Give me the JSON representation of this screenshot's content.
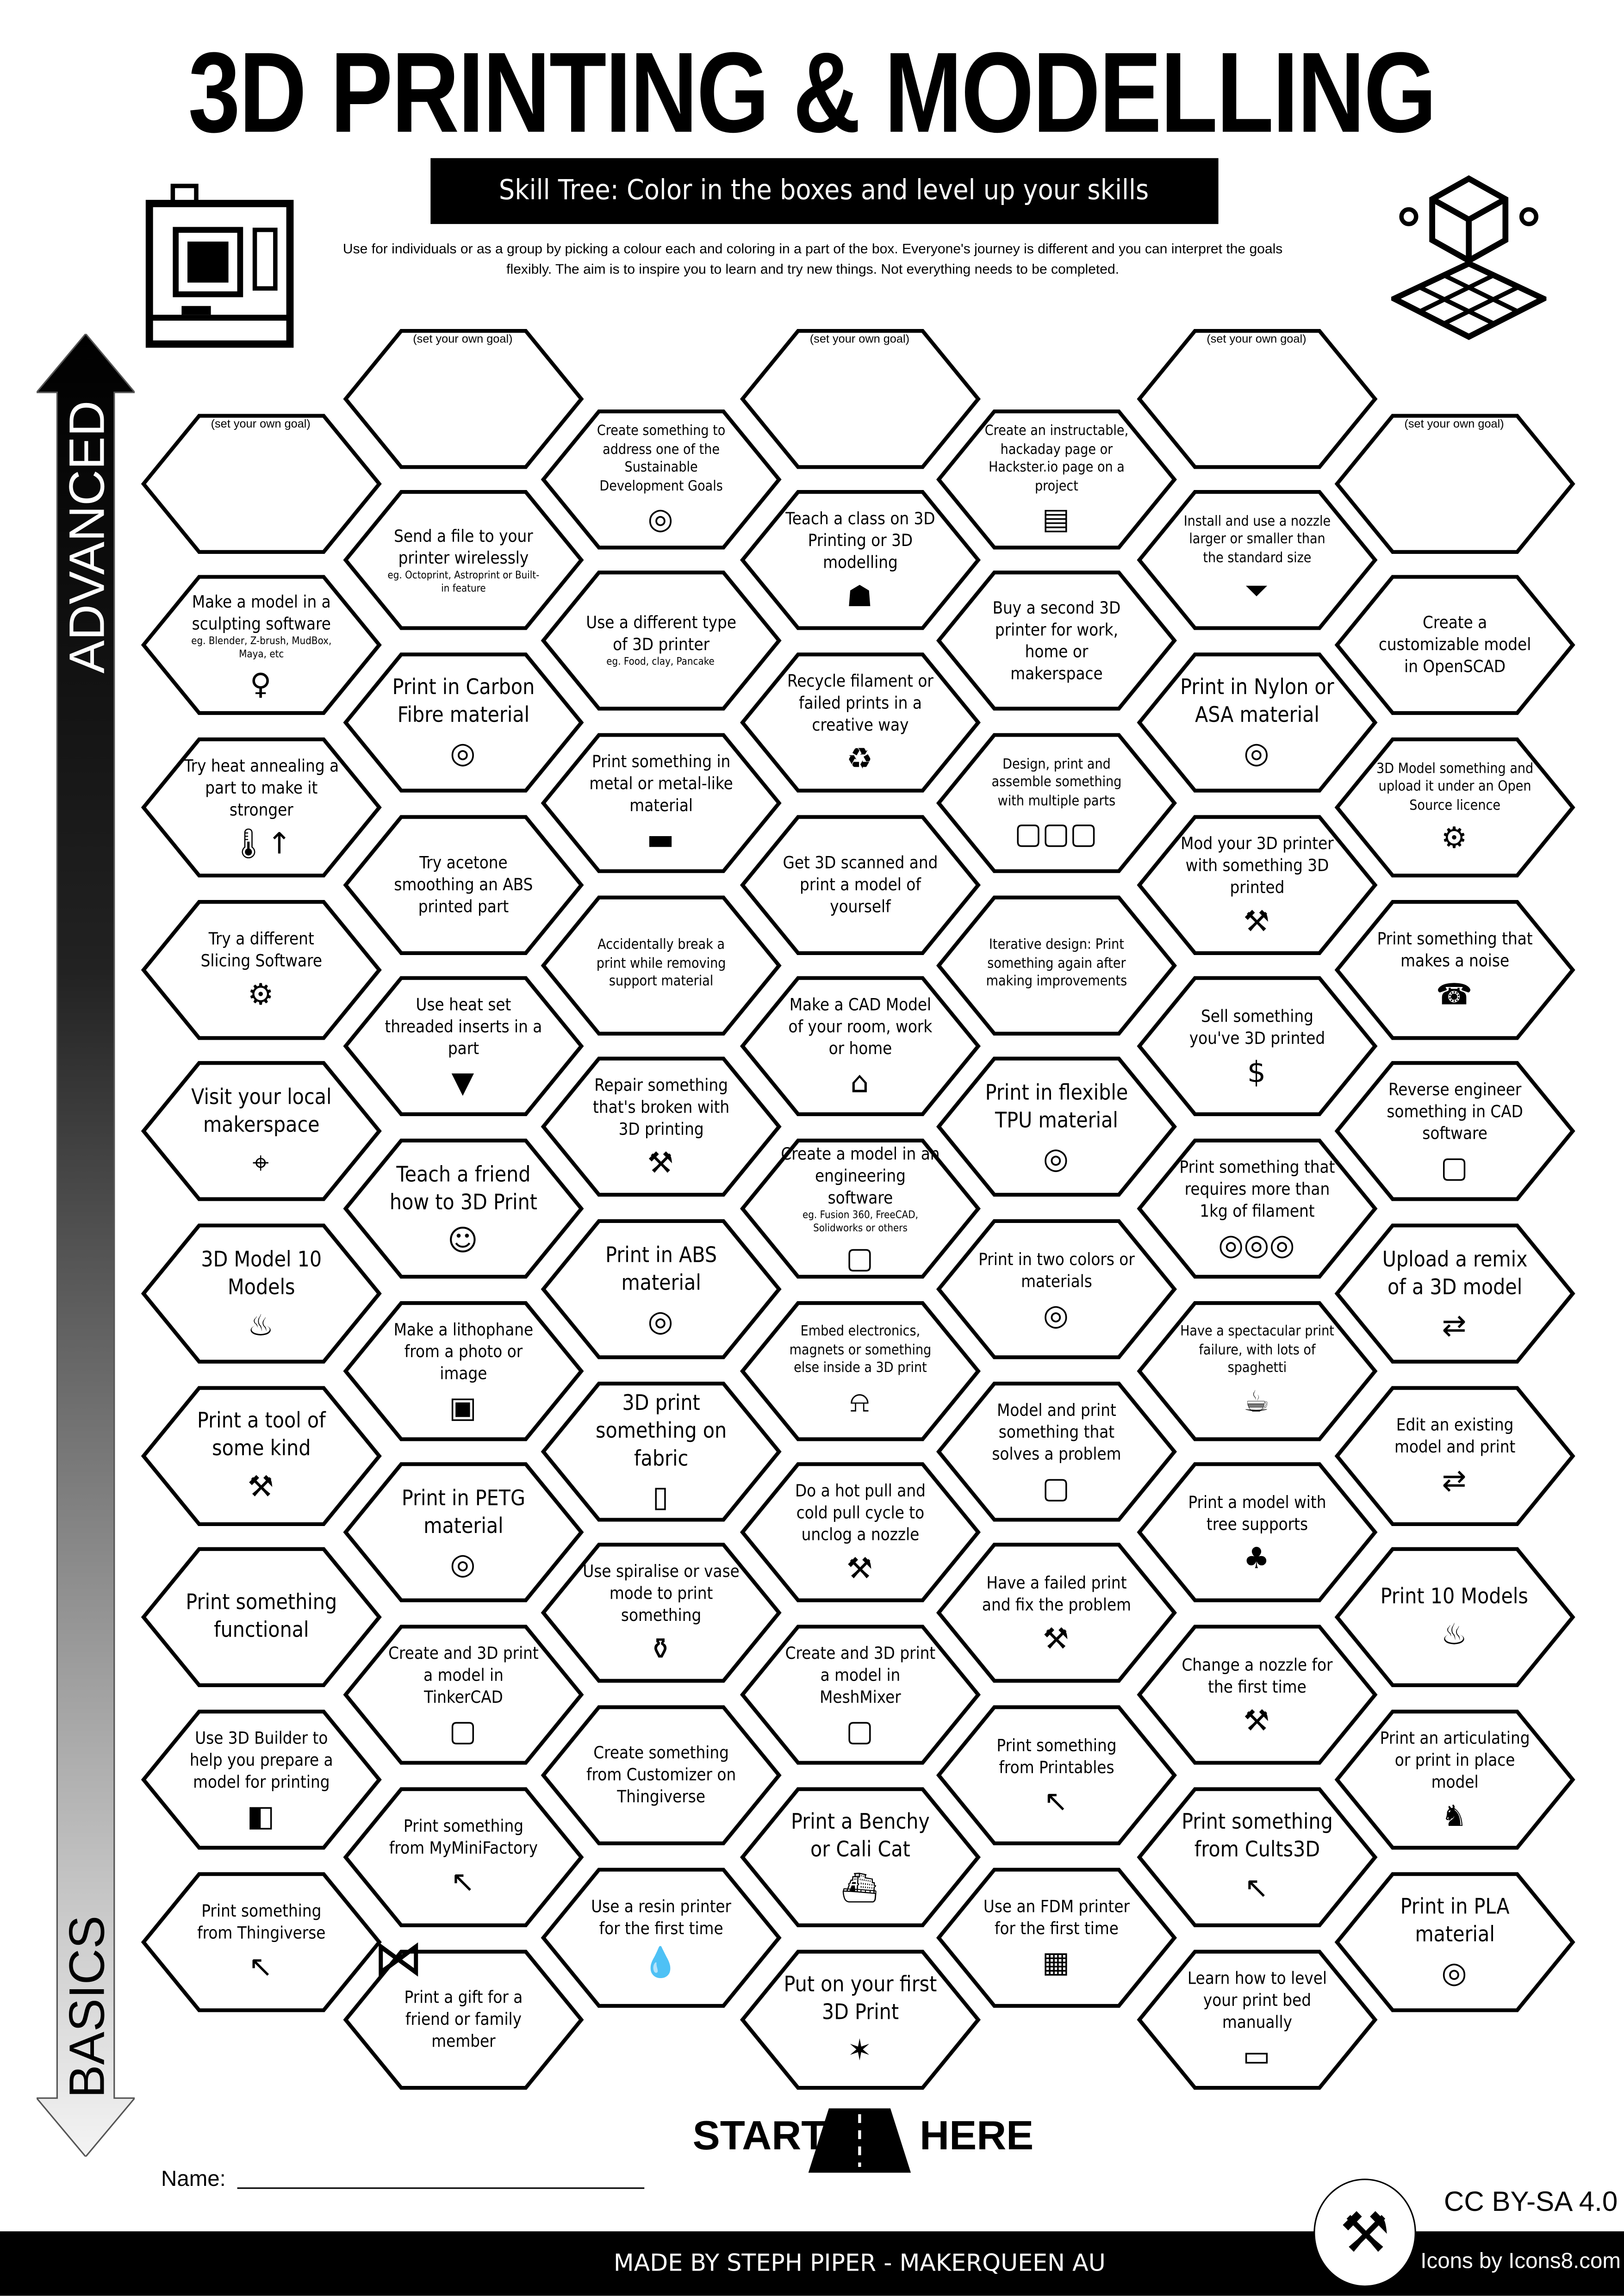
{
  "header": {
    "title": "3D PRINTING & MODELLING",
    "subtitle": "Skill Tree:  Color in the boxes and level up your skills",
    "description": "Use for individuals or as a group by picking a colour each and coloring in a part of the box.  Everyone's journey is different and you can interpret the goals flexibly.  The aim is to inspire you to learn and try new things. Not everything needs to be completed."
  },
  "side_arrow": {
    "top_label": "ADVANCED",
    "bottom_label": "BASICS"
  },
  "goal_label": "(set your own goal)",
  "columns": [
    [
      {
        "goal": true,
        "text": ""
      },
      {
        "text": "Make a model in a sculpting software",
        "sub": "eg. Blender, Z-brush, MudBox, Maya, etc",
        "icon": "sculpture-icon"
      },
      {
        "text": "Try heat annealing a part to make it stronger",
        "icon": "thermometer-icon"
      },
      {
        "text": "Try a different Slicing Software",
        "icon": "laptop-gear-icon"
      },
      {
        "text": "Visit your local makerspace",
        "icon": "location-pin-icon"
      },
      {
        "text": "3D Model 10 Models",
        "icon": "cake-icon"
      },
      {
        "text": "Print a tool of some kind",
        "icon": "tools-icon"
      },
      {
        "text": "Print something functional",
        "icon": ""
      },
      {
        "text": "Use 3D Builder to help you prepare a model for printing",
        "icon": "3d-builder-icon"
      },
      {
        "text": "Print something from Thingiverse",
        "icon": "cursor-icon"
      }
    ],
    [
      {
        "goal": true,
        "text": ""
      },
      {
        "text": "Send a file to your printer wirelessly",
        "sub": "eg. Octoprint, Astroprint or Built-in feature",
        "icon": ""
      },
      {
        "text": "Print in Carbon Fibre material",
        "icon": "spool-icon"
      },
      {
        "text": "Try acetone smoothing an ABS printed part",
        "icon": ""
      },
      {
        "text": "Use heat set threaded inserts in a part",
        "icon": "screw-icon"
      },
      {
        "text": "Teach a friend how to 3D Print",
        "icon": "teacher-icon"
      },
      {
        "text": "Make a lithophane from a photo or image",
        "icon": "picture-icon"
      },
      {
        "text": "Print in PETG material",
        "icon": "spool-icon"
      },
      {
        "text": "Create and 3D print a model in TinkerCAD",
        "icon": "cube-icon"
      },
      {
        "text": "Print something from MyMiniFactory",
        "icon": "cursor-icon"
      },
      {
        "text": "Print a gift for a friend or family member",
        "icon": ""
      }
    ],
    [
      {
        "text": "Create something to address one of the Sustainable Development Goals",
        "icon": "sdg-wheel-icon"
      },
      {
        "text": "Use a different type of 3D printer",
        "sub": "eg. Food, clay, Pancake",
        "icon": ""
      },
      {
        "text": "Print something in metal or metal-like material",
        "icon": "anvil-icon"
      },
      {
        "text": "Accidentally break a print while removing support material",
        "icon": ""
      },
      {
        "text": "Repair something that's broken with 3D printing",
        "icon": "tools-icon"
      },
      {
        "text": "Print in ABS material",
        "icon": "spool-icon"
      },
      {
        "text": "3D print something on fabric",
        "icon": "fabric-icon"
      },
      {
        "text": "Use spiralise or vase mode to print something",
        "icon": "vase-icon"
      },
      {
        "text": "Create something from Customizer on Thingiverse",
        "icon": ""
      },
      {
        "text": "Use a resin printer for the first time",
        "icon": "drop-icon"
      }
    ],
    [
      {
        "goal": true,
        "text": ""
      },
      {
        "text": "Teach a class on 3D Printing or 3D modelling",
        "icon": "presentation-icon"
      },
      {
        "text": "Recycle filament or failed prints in a creative way",
        "icon": "recycle-icon"
      },
      {
        "text": "Get 3D scanned and print a model of yourself",
        "icon": ""
      },
      {
        "text": "Make a CAD Model of your room, work or home",
        "icon": "house-icon"
      },
      {
        "text": "Create a model in an engineering software",
        "sub": "eg. Fusion 360, FreeCAD, Solidworks or others",
        "icon": "cube-icon"
      },
      {
        "text": "Embed electronics, magnets or something else inside a 3D print",
        "icon": "led-icon"
      },
      {
        "text": "Do a hot pull and cold pull cycle to unclog a nozzle",
        "icon": "tools-icon"
      },
      {
        "text": "Create and 3D print a model in MeshMixer",
        "icon": "cube-icon"
      },
      {
        "text": "Print a Benchy or Cali Cat",
        "icon": "boat-icon"
      },
      {
        "text": "Put on your first 3D Print",
        "icon": "party-popper-icon"
      }
    ],
    [
      {
        "text": "Create an instructable, hackaday page or Hackster.io page on a project",
        "icon": "document-icon"
      },
      {
        "text": "Buy a second 3D printer for work, home or makerspace",
        "icon": ""
      },
      {
        "text": "Design, print and assemble something with multiple parts",
        "icon": "cubes-icon"
      },
      {
        "text": "Iterative design: Print something again after making improvements",
        "icon": ""
      },
      {
        "text": "Print in flexible TPU material",
        "icon": "spool-icon"
      },
      {
        "text": "Print in two colors or materials",
        "icon": "spool-icon"
      },
      {
        "text": "Model and print something that solves a problem",
        "icon": "cube-icon"
      },
      {
        "text": "Have a failed print and fix the problem",
        "icon": "tools-icon"
      },
      {
        "text": "Print something from Printables",
        "icon": "cursor-icon"
      },
      {
        "text": "Use an FDM printer for the first time",
        "icon": "printer-icon"
      }
    ],
    [
      {
        "goal": true,
        "text": ""
      },
      {
        "text": "Install and use a nozzle larger or smaller than the standard size",
        "icon": "nozzle-icon"
      },
      {
        "text": "Print in Nylon or ASA material",
        "icon": "spool-icon"
      },
      {
        "text": "Mod your 3D printer with something 3D printed",
        "icon": "tools-icon"
      },
      {
        "text": "Sell something you've 3D printed",
        "icon": "money-bag-icon"
      },
      {
        "text": "Print something that requires more than 1kg of filament",
        "icon": "spools-icon"
      },
      {
        "text": "Have a spectacular print failure, with lots of spaghetti",
        "icon": "spaghetti-icon"
      },
      {
        "text": "Print a model with tree supports",
        "icon": "tree-icon"
      },
      {
        "text": "Change a nozzle for the first time",
        "icon": "tools-icon"
      },
      {
        "text": "Print something from Cults3D",
        "icon": "cursor-icon"
      },
      {
        "text": "Learn how to level your print bed manually",
        "icon": "ruler-icon"
      }
    ],
    [
      {
        "goal": true,
        "text": ""
      },
      {
        "text": "Create a customizable model in OpenSCAD",
        "icon": ""
      },
      {
        "text": "3D Model something and upload it under an Open Source licence",
        "icon": "gear-icon"
      },
      {
        "text": "Print something that makes a noise",
        "icon": "whistle-icon"
      },
      {
        "text": "Reverse engineer something in CAD software",
        "icon": "cube-icon"
      },
      {
        "text": "Upload a remix of a 3D model",
        "icon": "remix-arrow-icon"
      },
      {
        "text": "Edit an existing model and print",
        "icon": "remix-arrow-icon"
      },
      {
        "text": "Print 10 Models",
        "icon": "cake-icon"
      },
      {
        "text": "Print an articulating or print in place model",
        "icon": "dragon-icon"
      },
      {
        "text": "Print in PLA material",
        "icon": "spool-icon"
      }
    ]
  ],
  "start": {
    "left": "START",
    "right": "HERE"
  },
  "name_label": "Name:",
  "footer": {
    "credit": "MADE BY STEPH PIPER  -  MAKERQUEEN AU",
    "license": "CC BY-SA 4.0",
    "icons_credit": "Icons by Icons8.com"
  }
}
